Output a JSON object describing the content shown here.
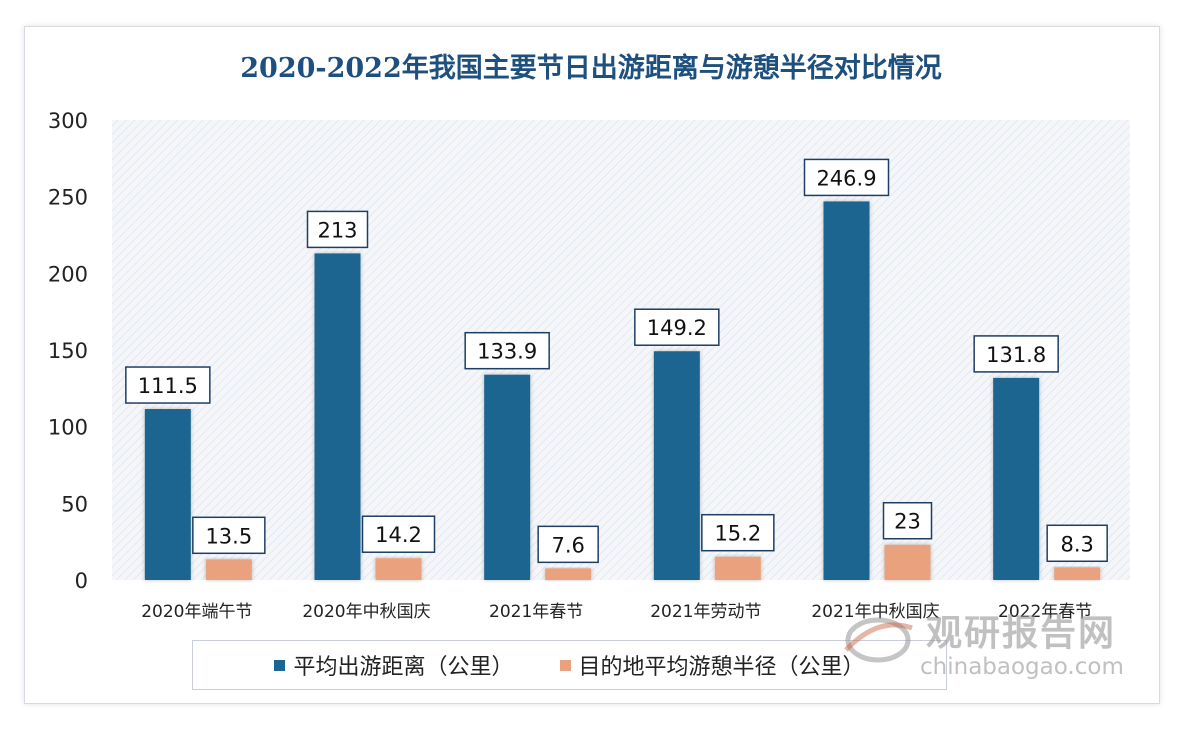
{
  "title": "2020-2022年我国主要节日出游距离与游憩半径对比情况",
  "chart_data": {
    "type": "bar",
    "title": "2020-2022年我国主要节日出游距离与游憩半径对比情况",
    "categories": [
      "2020年端午节",
      "2020年中秋国庆",
      "2021年春节",
      "2021年劳动节",
      "2021年中秋国庆",
      "2022年春节"
    ],
    "series": [
      {
        "name": "平均出游距离（公里）",
        "color": "#1a6591",
        "values": [
          111.5,
          213,
          133.9,
          149.2,
          246.9,
          131.8
        ],
        "labels": [
          "111.5",
          "213",
          "133.9",
          "149.2",
          "246.9",
          "131.8"
        ]
      },
      {
        "name": "目的地平均游憩半径（公里）",
        "color": "#e9a17e",
        "values": [
          13.5,
          14.2,
          7.6,
          15.2,
          23,
          8.3
        ],
        "labels": [
          "13.5",
          "14.2",
          "7.6",
          "15.2",
          "23",
          "8.3"
        ]
      }
    ],
    "ylim": [
      0,
      300
    ],
    "yticks": [
      "0",
      "50",
      "100",
      "150",
      "200",
      "250",
      "300"
    ],
    "grid": false,
    "legend_position": "bottom"
  },
  "watermark": {
    "brand": "观研报告网",
    "url": "chinabaogao.com",
    "icon": "globe-logo-icon"
  }
}
